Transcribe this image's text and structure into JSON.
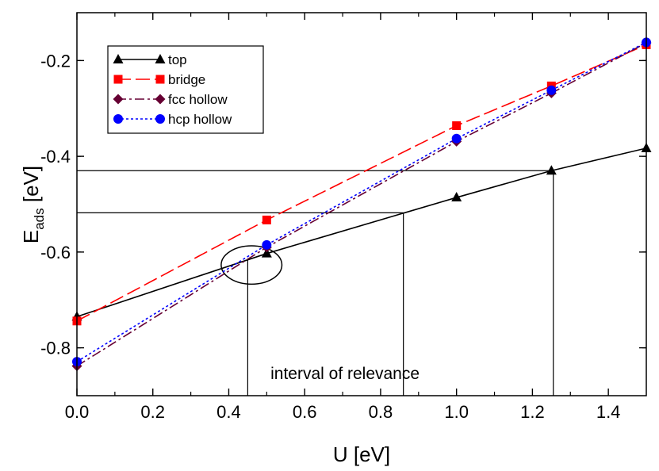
{
  "chart_data": {
    "type": "line",
    "title": "",
    "xlabel": "U [eV]",
    "ylabel": {
      "base": "E",
      "sub": "ads",
      "unit": " [eV]"
    },
    "xlim": [
      0.0,
      1.5
    ],
    "ylim": [
      -0.9,
      -0.1
    ],
    "x_ticks": [
      0.0,
      0.2,
      0.4,
      0.6,
      0.8,
      1.0,
      1.2,
      1.4
    ],
    "x_tick_labels": [
      "0.0",
      "0.2",
      "0.4",
      "0.6",
      "0.8",
      "1.0",
      "1.2",
      "1.4"
    ],
    "y_ticks": [
      -0.8,
      -0.6,
      -0.4,
      -0.2
    ],
    "y_tick_labels": [
      "-0.8",
      "-0.6",
      "-0.4",
      "-0.2"
    ],
    "grid": false,
    "legend_position": "top-left",
    "x": [
      0.0,
      0.5,
      1.0,
      1.25,
      1.5
    ],
    "series": [
      {
        "name": "top",
        "color": "#000000",
        "marker": "triangle",
        "line": "solid",
        "values": [
          -0.735,
          -0.603,
          -0.486,
          -0.43,
          -0.383
        ]
      },
      {
        "name": "bridge",
        "color": "#ff0000",
        "marker": "square",
        "line": "dashed",
        "values": [
          -0.744,
          -0.533,
          -0.336,
          -0.253,
          -0.167
        ]
      },
      {
        "name": "fcc hollow",
        "color": "#660033",
        "marker": "diamond",
        "line": "dashdot",
        "values": [
          -0.838,
          -0.59,
          -0.369,
          -0.268,
          -0.163
        ]
      },
      {
        "name": "hcp hollow",
        "color": "#0000ff",
        "marker": "circle",
        "line": "dotted",
        "values": [
          -0.829,
          -0.585,
          -0.363,
          -0.262,
          -0.162
        ]
      }
    ],
    "annotations": {
      "text": "interval of relevance",
      "text_at": [
        0.51,
        -0.865
      ],
      "vertical_lines_x": [
        0.45,
        0.86,
        1.255
      ],
      "horizontal_lines": [
        {
          "y": -0.518,
          "x_end": 0.86
        },
        {
          "y": -0.43,
          "x_end": 1.255
        }
      ],
      "circle_center": [
        0.46,
        -0.627
      ],
      "circle_radius_x": 0.08,
      "circle_radius_y": 0.04
    }
  }
}
